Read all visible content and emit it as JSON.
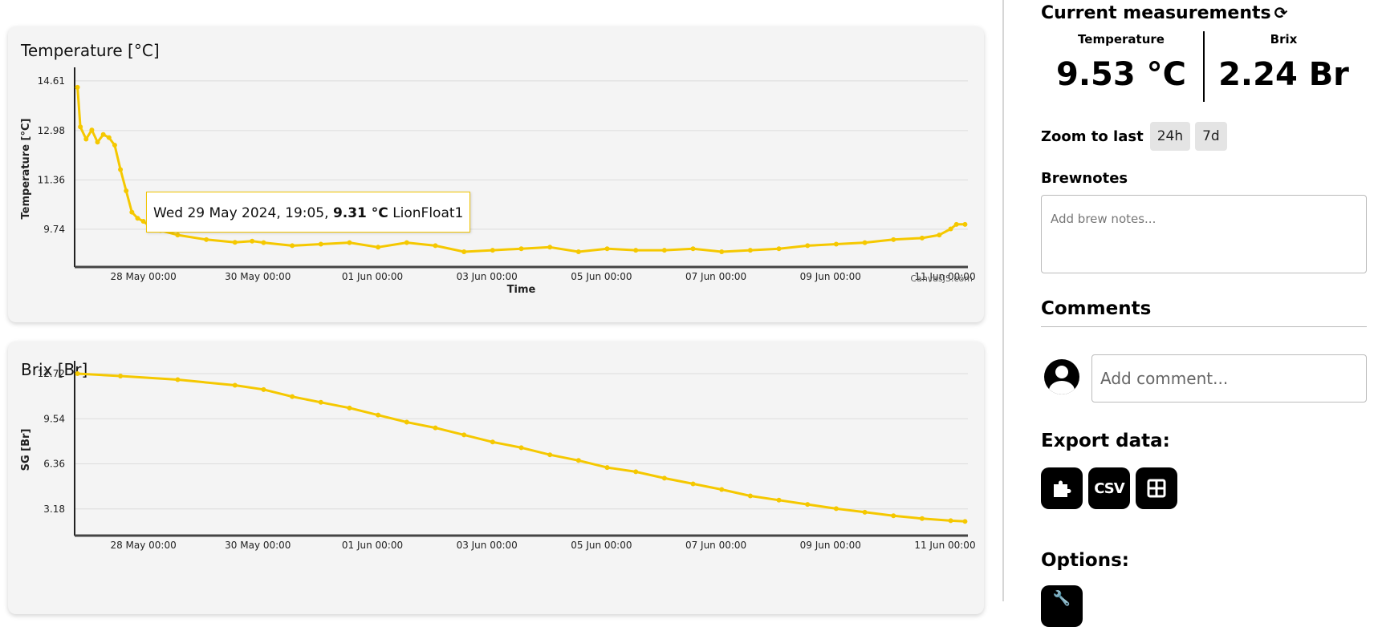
{
  "temp_card": {
    "title": "Temperature [°C]",
    "credit": "CanvasJS.com",
    "tooltip": {
      "date": "Wed 29 May 2024, 19:05,",
      "value": "9.31 °C",
      "series": "LionFloat1"
    }
  },
  "brix_card": {
    "title": "Brix [Br]"
  },
  "current": {
    "heading": "Current measurements",
    "temperature_label": "Temperature",
    "temperature_value": "9.53 °C",
    "brix_label": "Brix",
    "brix_value": "2.24 Br"
  },
  "zoom": {
    "label": "Zoom to last",
    "options": [
      "24h",
      "7d"
    ]
  },
  "brewnotes": {
    "heading": "Brewnotes",
    "placeholder": "Add brew notes..."
  },
  "comments": {
    "heading": "Comments",
    "placeholder": "Add comment..."
  },
  "export": {
    "heading": "Export data:",
    "csv_label": "CSV",
    "icons": [
      "puzzle-icon",
      "csv-icon",
      "table-icon"
    ]
  },
  "options": {
    "heading": "Options:",
    "icons": [
      "wrench-icon"
    ]
  },
  "colors": {
    "series": "#f5c800",
    "card_bg": "#f4f4f4"
  },
  "chart_data": [
    {
      "type": "line",
      "title": "Temperature [°C]",
      "xlabel": "Time",
      "ylabel": "Temperature [°C]",
      "x_ticks": [
        "28 May 00:00",
        "30 May 00:00",
        "01 Jun 00:00",
        "03 Jun 00:00",
        "05 Jun 00:00",
        "07 Jun 00:00",
        "09 Jun 00:00",
        "11 Jun 00:00"
      ],
      "y_ticks": [
        "9.74",
        "11.36",
        "12.98",
        "14.61"
      ],
      "xlim_days": [
        26.7,
        42.3
      ],
      "ylim": [
        8.5,
        14.95
      ],
      "grid": true,
      "series": [
        {
          "name": "LionFloat1",
          "x_days": [
            26.75,
            26.8,
            26.9,
            27.0,
            27.1,
            27.2,
            27.3,
            27.4,
            27.5,
            27.6,
            27.7,
            27.8,
            27.9,
            28.0,
            28.2,
            28.5,
            29.0,
            29.5,
            29.8,
            30.0,
            30.5,
            31.0,
            31.5,
            32.0,
            32.5,
            33.0,
            33.5,
            34.0,
            34.5,
            35.0,
            35.5,
            36.0,
            36.5,
            37.0,
            37.5,
            38.0,
            38.5,
            39.0,
            39.5,
            40.0,
            40.5,
            41.0,
            41.5,
            41.8,
            42.0,
            42.1,
            42.25
          ],
          "values": [
            14.4,
            13.1,
            12.7,
            13.0,
            12.6,
            12.85,
            12.75,
            12.5,
            11.7,
            11.0,
            10.3,
            10.1,
            10.0,
            9.85,
            9.7,
            9.55,
            9.4,
            9.31,
            9.35,
            9.3,
            9.2,
            9.25,
            9.3,
            9.15,
            9.3,
            9.2,
            9.0,
            9.05,
            9.1,
            9.15,
            9.0,
            9.1,
            9.05,
            9.05,
            9.1,
            9.0,
            9.05,
            9.1,
            9.2,
            9.25,
            9.3,
            9.4,
            9.45,
            9.55,
            9.75,
            9.9,
            9.9
          ]
        }
      ]
    },
    {
      "type": "line",
      "title": "Brix [Br]",
      "xlabel": "",
      "ylabel": "SG [Br]",
      "x_ticks": [
        "28 May 00:00",
        "30 May 00:00",
        "01 Jun 00:00",
        "03 Jun 00:00",
        "05 Jun 00:00",
        "07 Jun 00:00",
        "09 Jun 00:00",
        "11 Jun 00:00"
      ],
      "y_ticks": [
        "3.18",
        "6.36",
        "9.54",
        "12.72"
      ],
      "xlim_days": [
        26.7,
        42.3
      ],
      "ylim": [
        1.3,
        13.4
      ],
      "grid": true,
      "series": [
        {
          "name": "LionFloat1",
          "x_days": [
            26.75,
            27.5,
            28.5,
            29.5,
            30.0,
            30.5,
            31.0,
            31.5,
            32.0,
            32.5,
            33.0,
            33.5,
            34.0,
            34.5,
            35.0,
            35.5,
            36.0,
            36.5,
            37.0,
            37.5,
            38.0,
            38.5,
            39.0,
            39.5,
            40.0,
            40.5,
            41.0,
            41.5,
            42.0,
            42.25
          ],
          "values": [
            12.72,
            12.55,
            12.3,
            11.9,
            11.6,
            11.1,
            10.7,
            10.3,
            9.8,
            9.3,
            8.9,
            8.4,
            7.9,
            7.5,
            7.0,
            6.6,
            6.1,
            5.8,
            5.35,
            4.95,
            4.55,
            4.1,
            3.8,
            3.5,
            3.2,
            2.95,
            2.7,
            2.5,
            2.35,
            2.3
          ]
        }
      ]
    }
  ]
}
